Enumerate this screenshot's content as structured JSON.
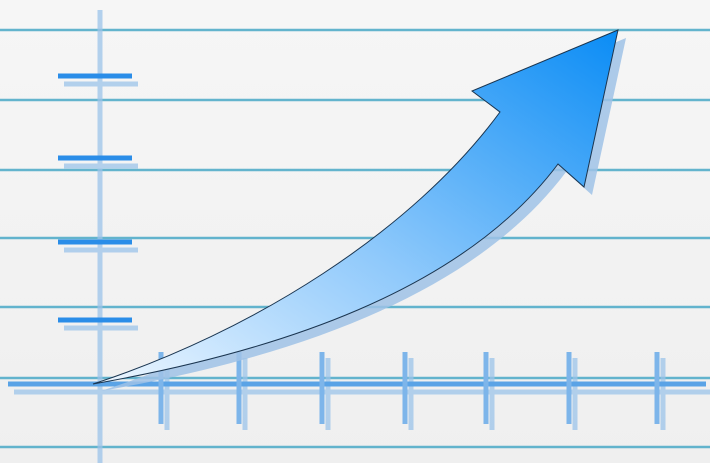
{
  "illustration": {
    "subject": "rising-arrow-growth-graphic",
    "icon": "trend-up-arrow-icon",
    "colors": {
      "background": "#f3f3f3",
      "ruled_line": "#4aa9c7",
      "axis": "#1f86e6",
      "axis_shadow": "#8fbde8",
      "arrow_top": "#0a8cf5",
      "arrow_bottom": "#dbeefc",
      "arrow_shadow": "#8db8e0"
    }
  }
}
